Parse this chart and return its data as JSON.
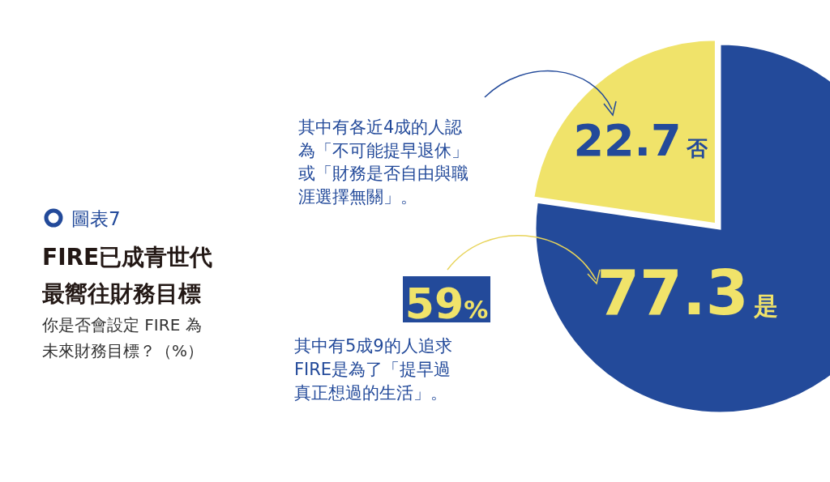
{
  "chart_data": {
    "type": "pie",
    "title": "FIRE已成青世代最嚮往財務目標",
    "subtitle": "你是否會設定 FIRE 為未來財務目標？（%）",
    "categories": [
      "是",
      "否"
    ],
    "values": [
      77.3,
      22.7
    ],
    "colors": [
      "#234a9a",
      "#f0e36a"
    ],
    "data_labels": true,
    "annotations": [
      "圖表7",
      "其中有各近4成的人認為「不可能提早退休」或「財務是否自由與職涯選擇無關」。",
      "59%",
      "其中有5成9的人追求FIRE是為了「提早過真正想過的生活」。"
    ]
  }
}
